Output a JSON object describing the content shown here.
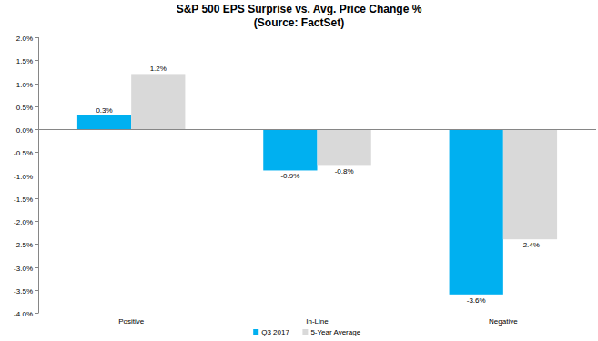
{
  "chart_data": {
    "type": "bar",
    "title": "S&P 500 EPS Surprise vs. Avg. Price Change %",
    "subtitle": "(Source: FactSet)",
    "categories": [
      "Positive",
      "In-Line",
      "Negative"
    ],
    "series": [
      {
        "name": "Q3 2017",
        "color": "#00b0f0",
        "values": [
          0.3,
          -0.9,
          -3.6
        ],
        "value_labels": [
          "0.3%",
          "-0.9%",
          "-3.6%"
        ]
      },
      {
        "name": "5-Year Average",
        "color": "#d9d9d9",
        "values": [
          1.2,
          -0.8,
          -2.4
        ],
        "value_labels": [
          "1.2%",
          "-0.8%",
          "-2.4%"
        ]
      }
    ],
    "ylim": [
      -4,
      2
    ],
    "yticks": [
      {
        "value": 2,
        "label": "2.0%"
      },
      {
        "value": 1.5,
        "label": "1.5%"
      },
      {
        "value": 1,
        "label": "1.0%"
      },
      {
        "value": 0.5,
        "label": "0.5%"
      },
      {
        "value": 0,
        "label": "0.0%"
      },
      {
        "value": -0.5,
        "label": "-0.5%"
      },
      {
        "value": -1,
        "label": "-1.0%"
      },
      {
        "value": -1.5,
        "label": "-1.5%"
      },
      {
        "value": -2,
        "label": "-2.0%"
      },
      {
        "value": -2.5,
        "label": "-2.5%"
      },
      {
        "value": -3,
        "label": "-3.0%"
      },
      {
        "value": -3.5,
        "label": "-3.5%"
      },
      {
        "value": -4,
        "label": "-4.0%"
      }
    ],
    "grid": false,
    "legend": "bottom",
    "data_labels": true
  }
}
